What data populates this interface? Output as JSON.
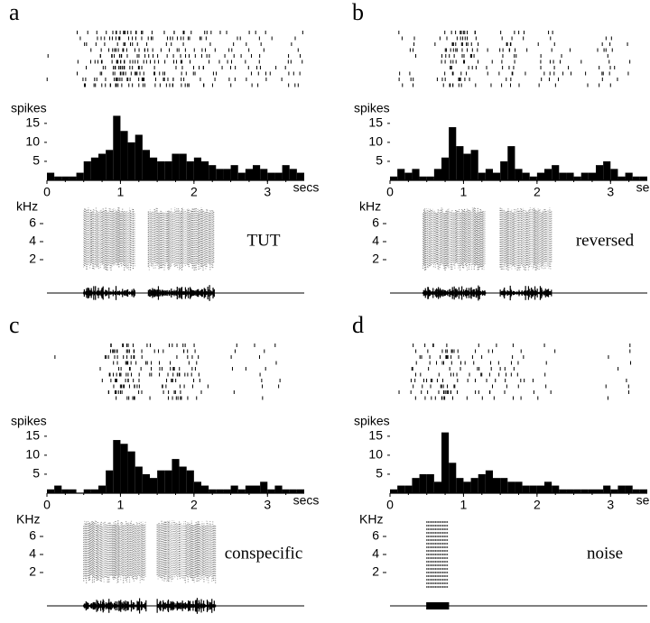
{
  "chart_data": [
    {
      "type": "histogram",
      "panel_label": "a",
      "ylabel": "spikes",
      "xlabel": "secs",
      "stimulus": "TUT",
      "color": "#000000",
      "bins": [
        0,
        0.1,
        0.2,
        0.3,
        0.4,
        0.5,
        0.6,
        0.7,
        0.8,
        0.9,
        1,
        1.1,
        1.2,
        1.3,
        1.4,
        1.5,
        1.6,
        1.7,
        1.8,
        1.9,
        2,
        2.1,
        2.2,
        2.3,
        2.4,
        2.5,
        2.6,
        2.7,
        2.8,
        2.9,
        3,
        3.1,
        3.2,
        3.3,
        3.4,
        3.5
      ],
      "values": [
        2,
        1,
        1,
        1,
        2,
        5,
        6,
        7,
        8,
        17,
        13,
        10,
        12,
        8,
        6,
        5,
        5,
        7,
        7,
        5,
        6,
        5,
        4,
        3,
        3,
        4,
        2,
        3,
        4,
        3,
        2,
        2,
        4,
        3,
        2
      ],
      "xlim": [
        0,
        3.5
      ],
      "ylim": [
        0,
        19
      ],
      "xticks": [
        0,
        1,
        2,
        3
      ],
      "yticks": [
        5,
        10,
        15
      ],
      "spectrogram": {
        "ylabel": "kHz",
        "ylim": [
          0,
          8
        ],
        "yticks": [
          2,
          4,
          6
        ]
      }
    },
    {
      "type": "histogram",
      "panel_label": "b",
      "ylabel": "spikes",
      "xlabel": "secs",
      "stimulus": "reversed",
      "color": "#000000",
      "bins": [
        0,
        0.1,
        0.2,
        0.3,
        0.4,
        0.5,
        0.6,
        0.7,
        0.8,
        0.9,
        1,
        1.1,
        1.2,
        1.3,
        1.4,
        1.5,
        1.6,
        1.7,
        1.8,
        1.9,
        2,
        2.1,
        2.2,
        2.3,
        2.4,
        2.5,
        2.6,
        2.7,
        2.8,
        2.9,
        3,
        3.1,
        3.2,
        3.3,
        3.4,
        3.5
      ],
      "values": [
        1,
        3,
        2,
        3,
        1,
        1,
        3,
        6,
        14,
        9,
        7,
        8,
        2,
        3,
        2,
        5,
        9,
        3,
        2,
        1,
        2,
        3,
        4,
        2,
        2,
        1,
        2,
        2,
        4,
        5,
        3,
        1,
        2,
        1,
        1
      ],
      "xlim": [
        0,
        3.5
      ],
      "ylim": [
        0,
        19
      ],
      "xticks": [
        0,
        1,
        2,
        3
      ],
      "yticks": [
        5,
        10,
        15
      ],
      "spectrogram": {
        "ylabel": "kHz",
        "ylim": [
          0,
          8
        ],
        "yticks": [
          2,
          4,
          6
        ]
      }
    },
    {
      "type": "histogram",
      "panel_label": "c",
      "ylabel": "spikes",
      "xlabel": "secs",
      "stimulus": "conspecific",
      "color": "#000000",
      "bins": [
        0,
        0.1,
        0.2,
        0.3,
        0.4,
        0.5,
        0.6,
        0.7,
        0.8,
        0.9,
        1,
        1.1,
        1.2,
        1.3,
        1.4,
        1.5,
        1.6,
        1.7,
        1.8,
        1.9,
        2,
        2.1,
        2.2,
        2.3,
        2.4,
        2.5,
        2.6,
        2.7,
        2.8,
        2.9,
        3,
        3.1,
        3.2,
        3.3,
        3.4,
        3.5
      ],
      "values": [
        1,
        2,
        1,
        1,
        0,
        1,
        1,
        2,
        6,
        14,
        13,
        11,
        7,
        5,
        4,
        6,
        6,
        9,
        7,
        6,
        3,
        2,
        1,
        1,
        1,
        2,
        1,
        2,
        2,
        3,
        1,
        2,
        1,
        1,
        1
      ],
      "xlim": [
        0,
        3.5
      ],
      "ylim": [
        0,
        19
      ],
      "xticks": [
        0,
        1,
        2,
        3
      ],
      "yticks": [
        5,
        10,
        15
      ],
      "spectrogram": {
        "ylabel": "KHz",
        "ylim": [
          0,
          8
        ],
        "yticks": [
          2,
          4,
          6
        ]
      }
    },
    {
      "type": "histogram",
      "panel_label": "d",
      "ylabel": "spikes",
      "xlabel": "secs",
      "stimulus": "noise",
      "color": "#000000",
      "bins": [
        0,
        0.1,
        0.2,
        0.3,
        0.4,
        0.5,
        0.6,
        0.7,
        0.8,
        0.9,
        1,
        1.1,
        1.2,
        1.3,
        1.4,
        1.5,
        1.6,
        1.7,
        1.8,
        1.9,
        2,
        2.1,
        2.2,
        2.3,
        2.4,
        2.5,
        2.6,
        2.7,
        2.8,
        2.9,
        3,
        3.1,
        3.2,
        3.3,
        3.4,
        3.5
      ],
      "values": [
        1,
        2,
        2,
        4,
        5,
        5,
        3,
        16,
        8,
        4,
        3,
        4,
        5,
        6,
        4,
        4,
        3,
        3,
        2,
        2,
        2,
        3,
        2,
        1,
        1,
        1,
        1,
        1,
        1,
        2,
        1,
        2,
        2,
        1,
        1
      ],
      "xlim": [
        0,
        3.5
      ],
      "ylim": [
        0,
        19
      ],
      "xticks": [
        0,
        1,
        2,
        3
      ],
      "yticks": [
        5,
        10,
        15
      ],
      "spectrogram": {
        "ylabel": "KHz",
        "ylim": [
          0,
          8
        ],
        "yticks": [
          2,
          4,
          6
        ]
      }
    }
  ]
}
